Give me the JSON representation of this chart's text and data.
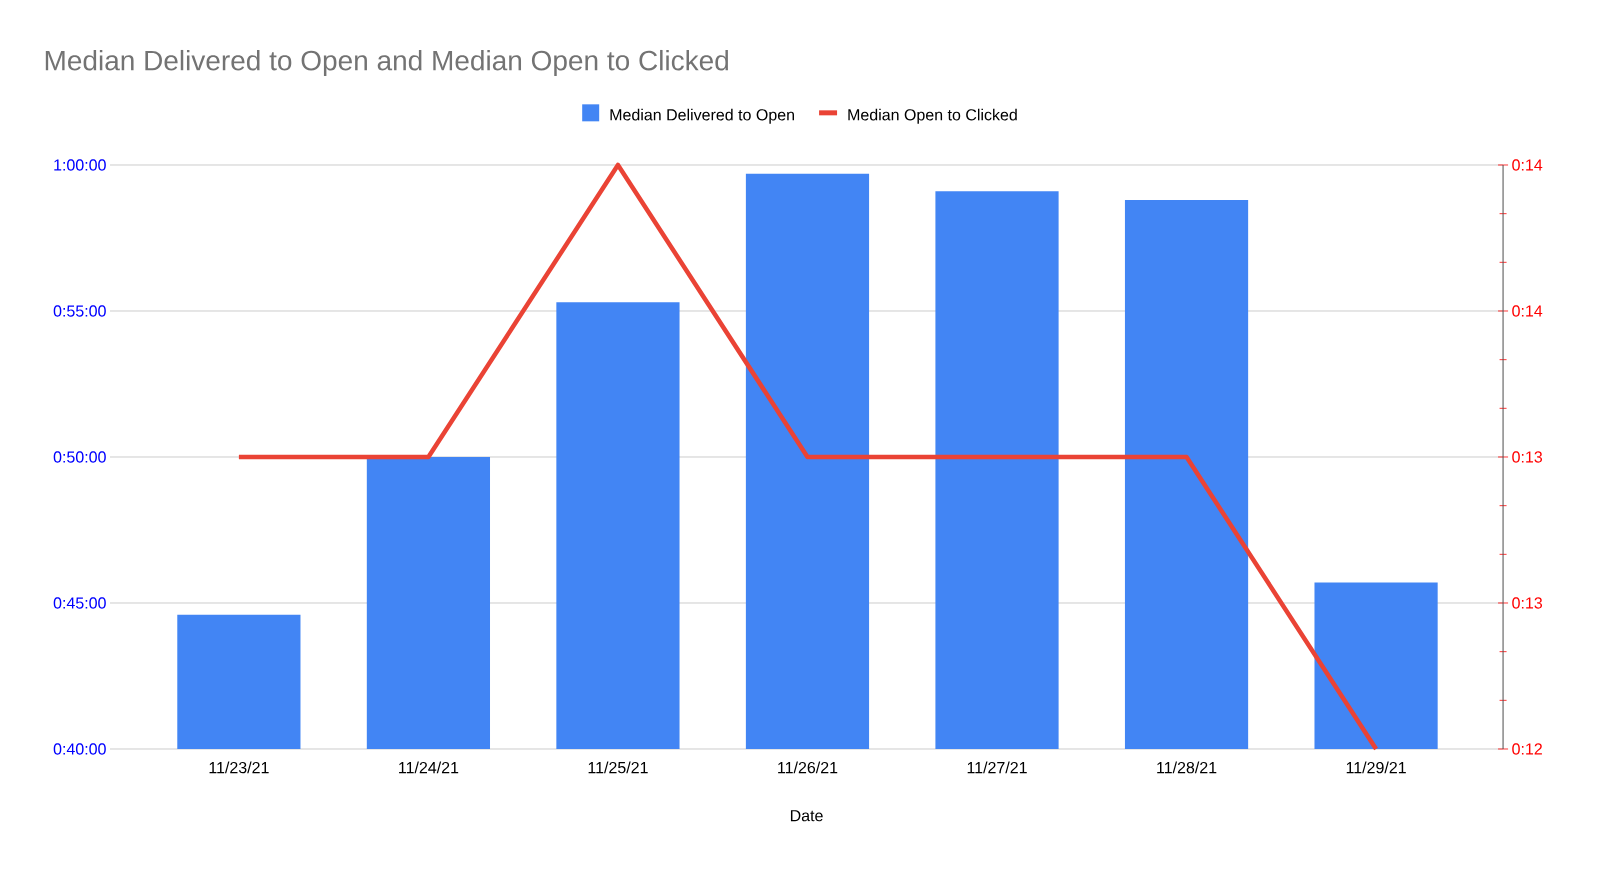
{
  "chart_data": {
    "type": "bar",
    "title": "Median Delivered to Open and Median Open to Clicked",
    "xlabel": "Date",
    "categories": [
      "11/23/21",
      "11/24/21",
      "11/25/21",
      "11/26/21",
      "11/27/21",
      "11/28/21",
      "11/29/21"
    ],
    "series": [
      {
        "name": "Median Delivered to Open",
        "color": "#4285f4",
        "values": [
          44.6,
          50.0,
          55.3,
          59.7,
          59.1,
          58.8,
          45.7
        ]
      },
      {
        "name": "Median Open to Clicked",
        "type": "line",
        "axis": "y2",
        "color": "#ea4335",
        "values": [
          13,
          13,
          14,
          13,
          13,
          13,
          12
        ]
      }
    ],
    "ylim": [
      40,
      60
    ],
    "yticks": [
      {
        "value": 40,
        "label": "0:40:00"
      },
      {
        "value": 45,
        "label": "0:45:00"
      },
      {
        "value": 50,
        "label": "0:50:00"
      },
      {
        "value": 55,
        "label": "0:55:00"
      },
      {
        "value": 60,
        "label": "1:00:00"
      }
    ],
    "y2lim": [
      12,
      14
    ],
    "y2ticks": [
      {
        "value": 12,
        "label": "0:12"
      },
      {
        "value": 12.5,
        "label": "0:13"
      },
      {
        "value": 13,
        "label": "0:13"
      },
      {
        "value": 13.5,
        "label": "0:14"
      },
      {
        "value": 14,
        "label": "0:14"
      }
    ],
    "grid": "y",
    "legend": "top"
  }
}
